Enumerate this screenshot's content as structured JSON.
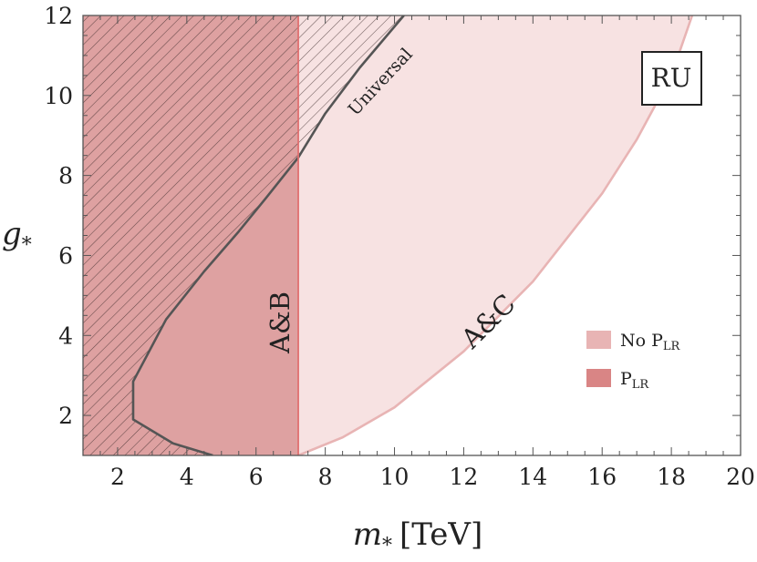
{
  "chart_data": {
    "type": "area",
    "title": "",
    "xlabel": "m",
    "xlabel_subscript": "*",
    "xlabel_unit": "[TeV]",
    "ylabel": "g",
    "ylabel_subscript": "*",
    "xlim": [
      1,
      20
    ],
    "ylim": [
      1,
      12
    ],
    "xticks": [
      2,
      4,
      6,
      8,
      10,
      12,
      14,
      16,
      18,
      20
    ],
    "yticks": [
      2,
      4,
      6,
      8,
      10,
      12
    ],
    "grid": false,
    "badge": "RU",
    "legend_position": "bottom-right",
    "colors": {
      "no_plr": "#e8b4b4",
      "no_plr_fill": "#f7e2e2",
      "plr": "#d98585",
      "plr_fill": "#dea1a1",
      "universal_line": "#555555",
      "boundary_line": "#e07070"
    },
    "series": [
      {
        "name": "No P_LR",
        "legend_label": "No P",
        "legend_subscript": "LR",
        "annotation": "A&C",
        "boundary": {
          "x": [
            7.22,
            8.5,
            10,
            12,
            14,
            16,
            17,
            18,
            18.6
          ],
          "y": [
            1,
            1.45,
            2.2,
            3.6,
            5.35,
            7.55,
            8.9,
            10.5,
            12
          ]
        }
      },
      {
        "name": "P_LR",
        "legend_label": "P",
        "legend_subscript": "LR",
        "annotation": "A&B",
        "boundary": {
          "x": [
            7.22,
            7.22
          ],
          "y": [
            1,
            12
          ]
        }
      },
      {
        "name": "Universal",
        "annotation": "Universal",
        "boundary": {
          "x": [
            4.75,
            3.6,
            2.45,
            2.45,
            3.4,
            4.5,
            5.5,
            6.3,
            7.22,
            8,
            9,
            10.27
          ],
          "y": [
            1,
            1.3,
            1.9,
            2.85,
            4.4,
            5.6,
            6.6,
            7.45,
            8.45,
            9.55,
            10.7,
            12
          ]
        }
      }
    ]
  }
}
